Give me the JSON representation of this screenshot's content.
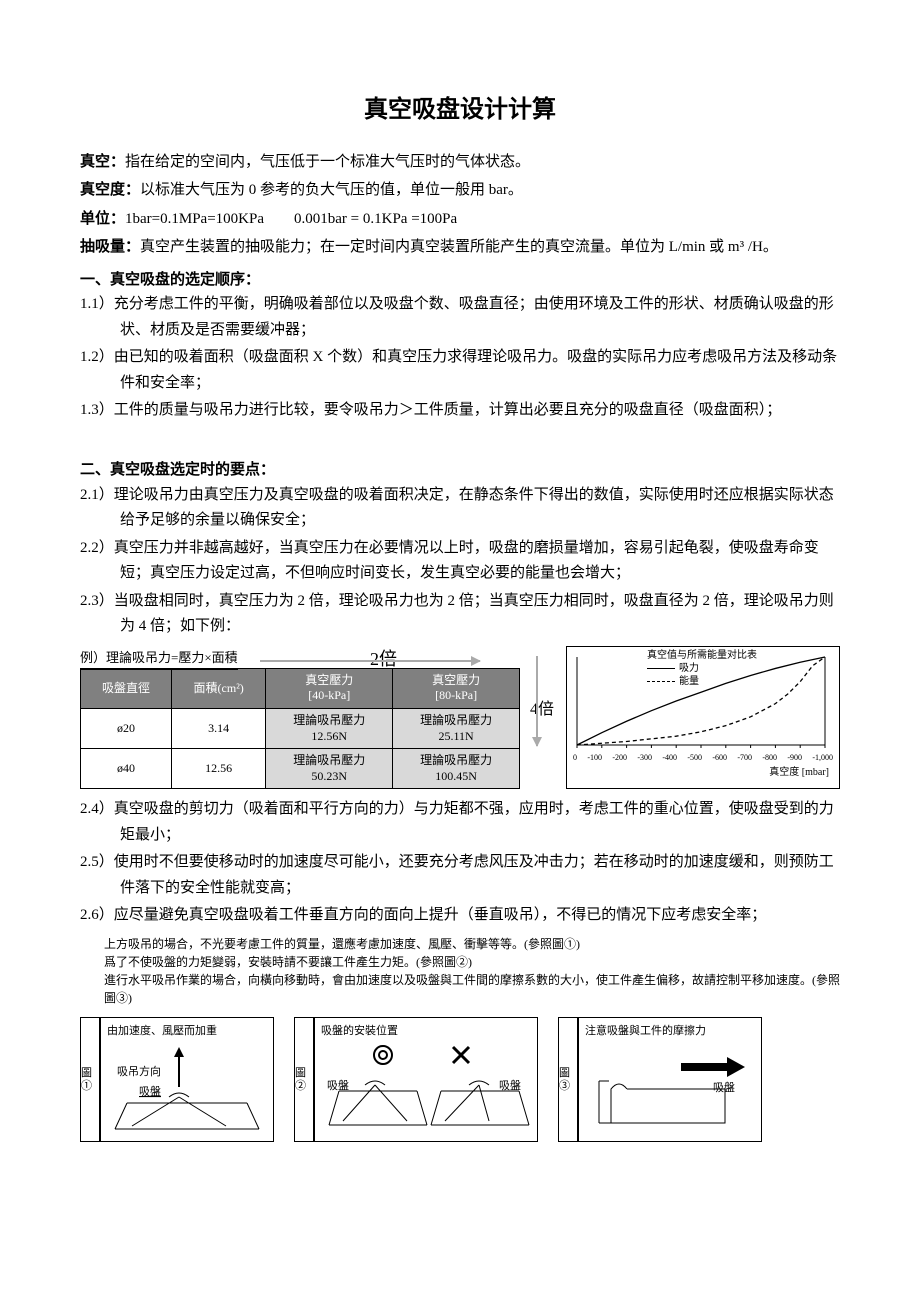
{
  "title": "真空吸盘设计计算",
  "defs": {
    "vacuum_label": "真空：",
    "vacuum_text": "指在给定的空间内，气压低于一个标准大气压时的气体状态。",
    "degree_label": "真空度：",
    "degree_text": "以标准大气压为 0 参考的负大气压的值，单位一般用 bar。",
    "unit_label": "单位：",
    "unit_text": "1bar=0.1MPa=100KPa  0.001bar = 0.1KPa =100Pa",
    "pump_label": "抽吸量：",
    "pump_text": "真空产生装置的抽吸能力；在一定时间内真空装置所能产生的真空流量。单位为 L/min 或 m³ /H。"
  },
  "sec1": {
    "heading": "一、真空吸盘的选定顺序：",
    "p11": "1.1）充分考虑工件的平衡，明确吸着部位以及吸盘个数、吸盘直径；由使用环境及工件的形状、材质确认吸盘的形状、材质及是否需要缓冲器；",
    "p12": "1.2）由已知的吸着面积（吸盘面积 X 个数）和真空压力求得理论吸吊力。吸盘的实际吊力应考虑吸吊方法及移动条件和安全率；",
    "p13": "1.3）工件的质量与吸吊力进行比较，要令吸吊力＞工件质量，计算出必要且充分的吸盘直径（吸盘面积）；"
  },
  "sec2": {
    "heading": "二、真空吸盘选定时的要点：",
    "p21": "2.1）理论吸吊力由真空压力及真空吸盘的吸着面积决定，在静态条件下得出的数值，实际使用时还应根据实际状态给予足够的余量以确保安全；",
    "p22": "2.2）真空压力并非越高越好，当真空压力在必要情况以上时，吸盘的磨损量增加，容易引起龟裂，使吸盘寿命变短；真空压力设定过高，不但响应时间变长，发生真空必要的能量也会增大；",
    "p23": "2.3）当吸盘相同时，真空压力为 2 倍，理论吸吊力也为 2 倍；当真空压力相同时，吸盘直径为 2 倍，理论吸吊力则为 4 倍；如下例：",
    "p24": "2.4）真空吸盘的剪切力（吸着面和平行方向的力）与力矩都不强，应用时，考虑工件的重心位置，使吸盘受到的力矩最小；",
    "p25": "2.5）使用时不但要使移动时的加速度尽可能小，还要充分考虑风压及冲击力；若在移动时的加速度缓和，则预防工件落下的安全性能就变高；",
    "p26": "2.6）应尽量避免真空吸盘吸着工件垂直方向的面向上提升（垂直吸吊），不得已的情况下应考虑安全率；"
  },
  "table": {
    "title": "例）理論吸吊力=壓力×面積",
    "two_label": "2倍",
    "four_label": "4倍",
    "headers": [
      "吸盤直徑",
      "面積(cm²)",
      "真空壓力\n[40-kPa]",
      "真空壓力\n[80-kPa]"
    ],
    "rows": [
      {
        "dia": "ø20",
        "area": "3.14",
        "f40": "理論吸吊壓力\n12.56N",
        "f80": "理論吸吊壓力\n25.11N"
      },
      {
        "dia": "ø40",
        "area": "12.56",
        "f40": "理論吸吊壓力\n50.23N",
        "f80": "理論吸吊壓力\n100.45N"
      }
    ]
  },
  "chart": {
    "title": "真空值与所需能量对比表",
    "legend_solid": "吸力",
    "legend_dash": "能量",
    "xlabel": "真空度 [mbar]",
    "xticks": [
      "0",
      "-100",
      "-200",
      "-300",
      "-400",
      "-500",
      "-600",
      "-700",
      "-800",
      "-900",
      "-1,000"
    ],
    "series_solid": {
      "color": "#000",
      "width": 1.2,
      "points": [
        [
          0,
          0
        ],
        [
          100,
          14
        ],
        [
          200,
          27
        ],
        [
          300,
          39
        ],
        [
          400,
          50
        ],
        [
          500,
          60
        ],
        [
          600,
          70
        ],
        [
          700,
          79
        ],
        [
          800,
          87
        ],
        [
          900,
          94
        ],
        [
          1000,
          100
        ]
      ]
    },
    "series_dash": {
      "color": "#000",
      "width": 1.2,
      "dash": "4,3",
      "points": [
        [
          0,
          0
        ],
        [
          200,
          4
        ],
        [
          400,
          10
        ],
        [
          500,
          15
        ],
        [
          600,
          22
        ],
        [
          700,
          32
        ],
        [
          800,
          47
        ],
        [
          850,
          58
        ],
        [
          900,
          72
        ],
        [
          950,
          90
        ],
        [
          1000,
          100
        ]
      ]
    },
    "ymax": 100
  },
  "notes": {
    "n1": "上方吸吊的場合，不光要考慮工件的質量，還應考慮加速度、風壓、衝擊等等。(參照圖①)",
    "n2": "爲了不使吸盤的力矩變弱，安裝時請不要讓工件產生力矩。(參照圖②)",
    "n3": "進行水平吸吊作業的場合，向橫向移動時，會由加速度以及吸盤與工件間的摩擦系數的大小，使工件產生偏移，故請控制平移加速度。(參照圖③)"
  },
  "diagrams": {
    "d1": {
      "label": "圖①",
      "title": "由加速度、風壓而加重",
      "dir": "吸吊方向",
      "pad": "吸盤"
    },
    "d2": {
      "label": "圖②",
      "title": "吸盤的安裝位置",
      "padL": "吸盤",
      "padR": "吸盤"
    },
    "d3": {
      "label": "圖③",
      "title": "注意吸盤與工件的摩擦力",
      "pad": "吸盤"
    }
  }
}
